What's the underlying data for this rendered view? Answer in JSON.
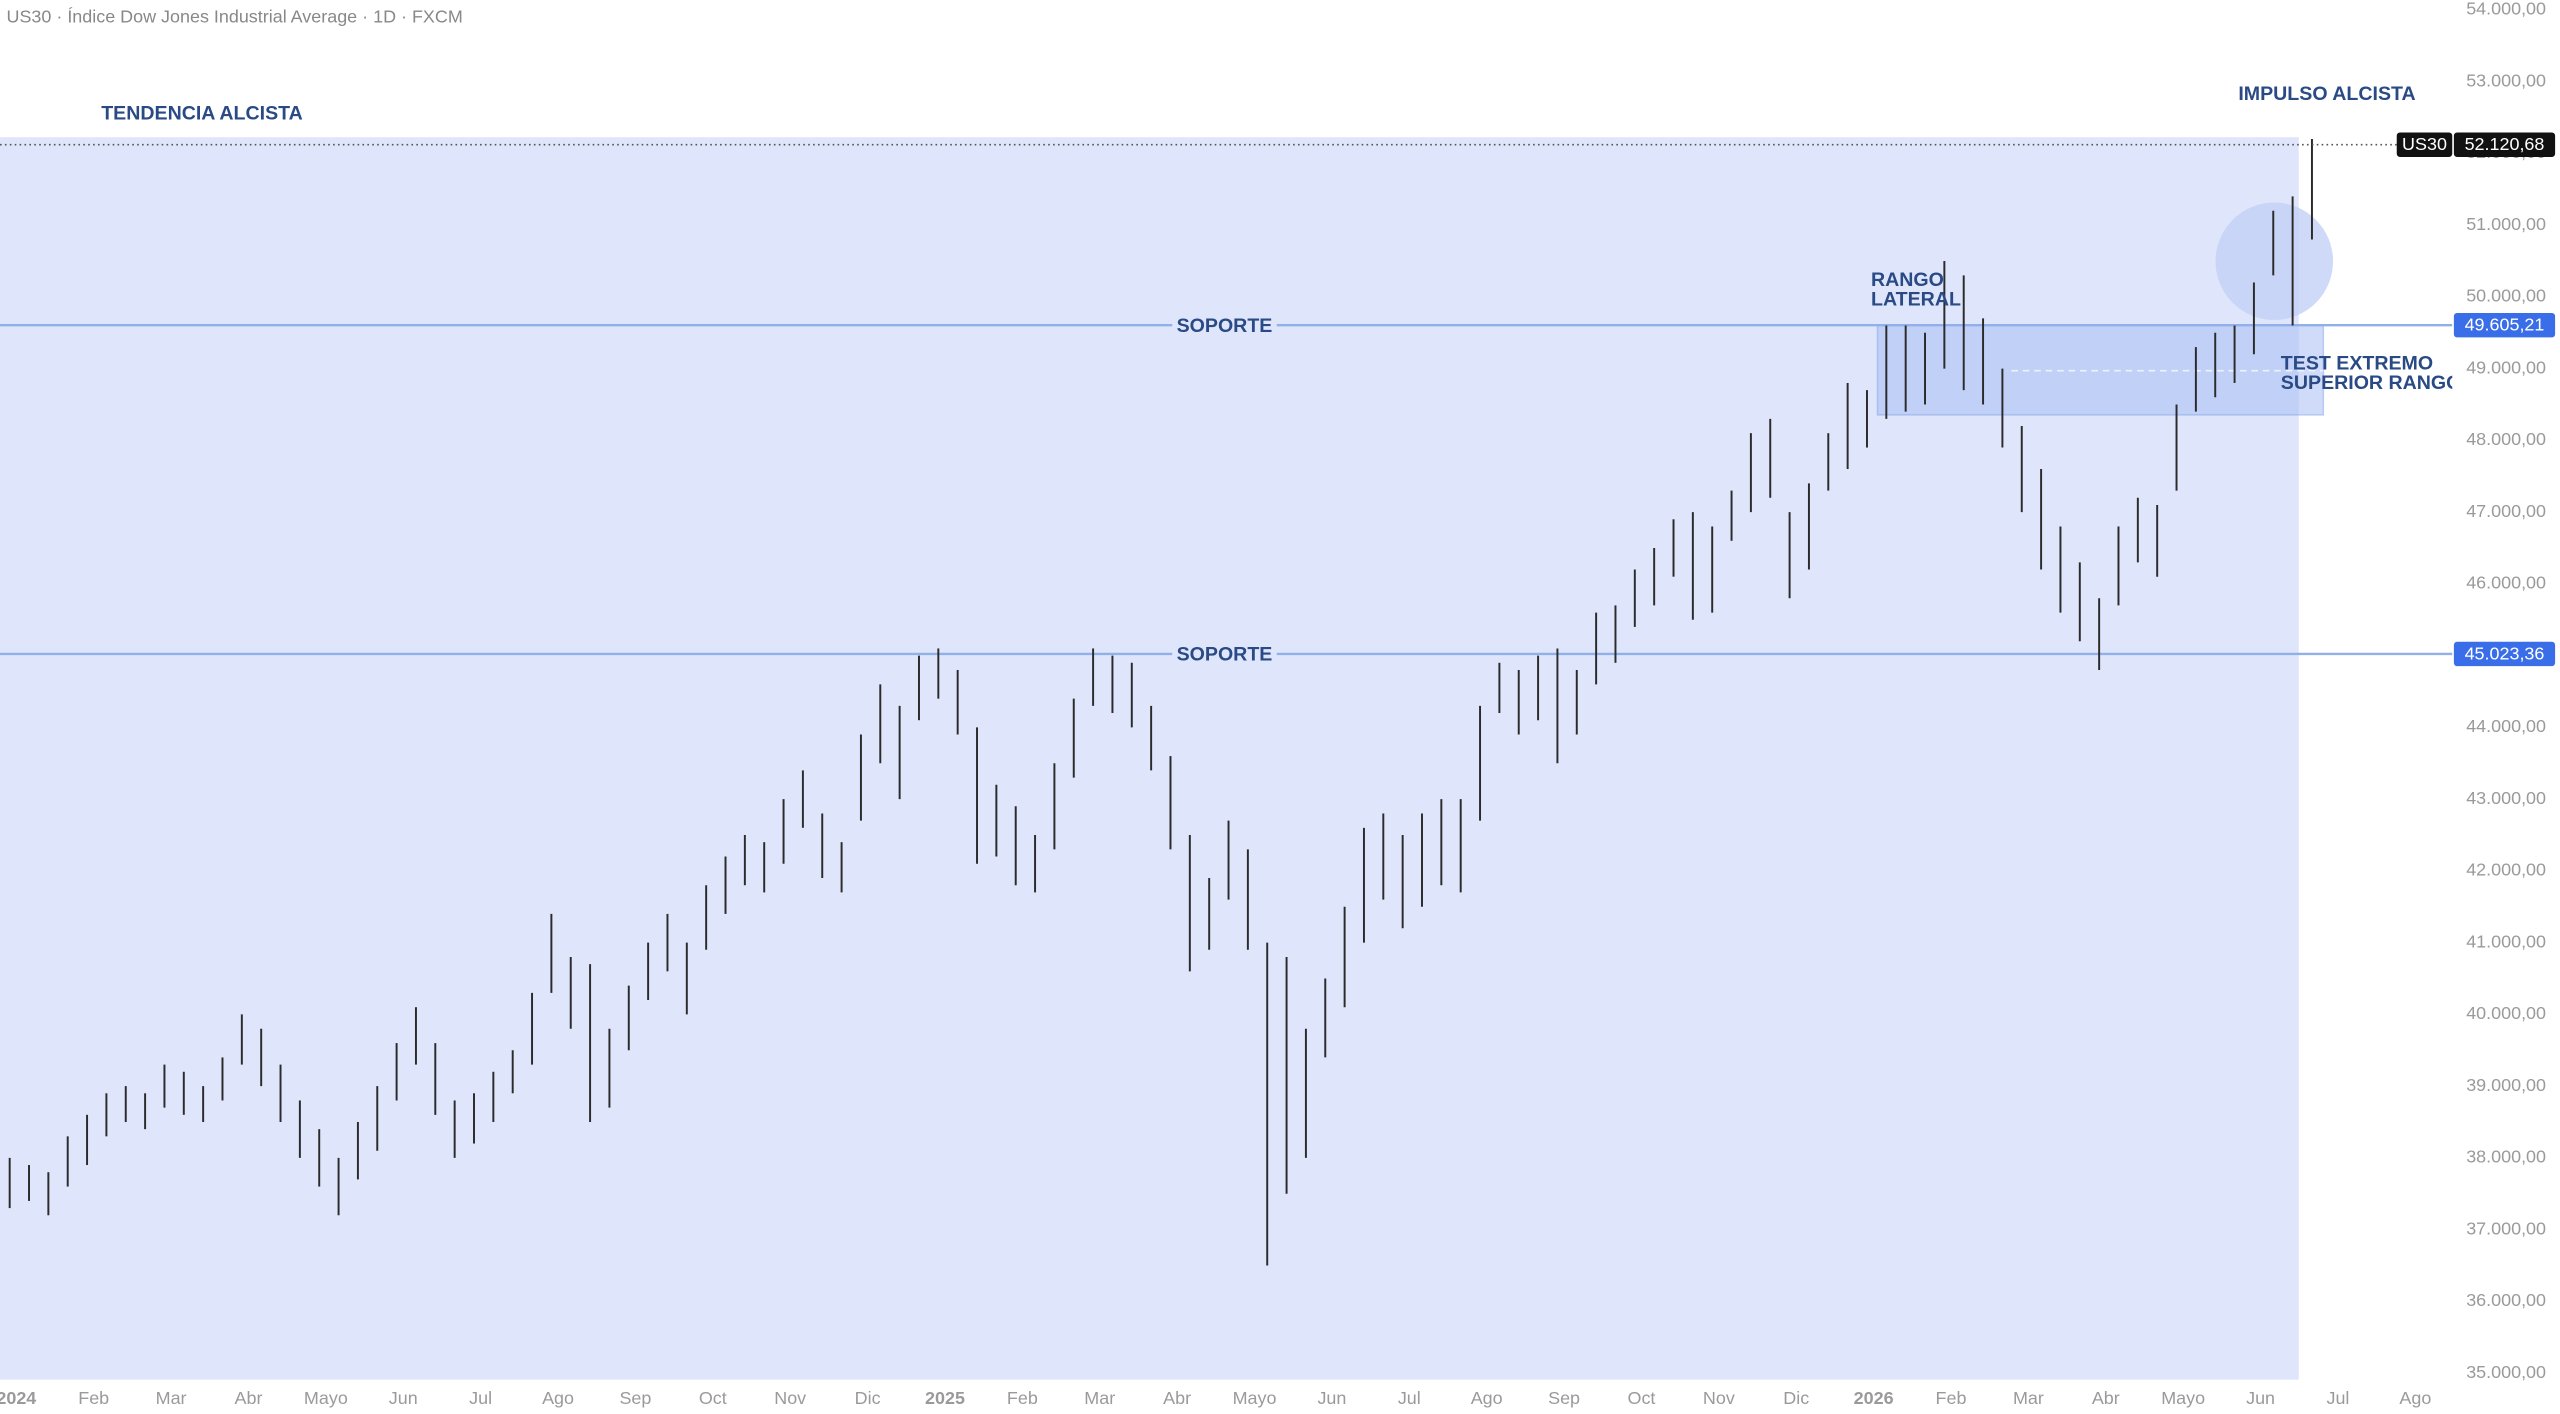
{
  "chart_data": {
    "type": "ohlc",
    "title": "US30 · Índice Dow Jones Industrial Average · 1D · FXCM",
    "categories": [
      "2024",
      "Feb",
      "Mar",
      "Abr",
      "Mayo",
      "Jun",
      "Jul",
      "Ago",
      "Sep",
      "Oct",
      "Nov",
      "Dic",
      "2025",
      "Feb",
      "Mar",
      "Abr",
      "Mayo",
      "Jun",
      "Jul",
      "Ago",
      "Sep",
      "Oct",
      "Nov",
      "Dic",
      "2026",
      "Feb",
      "Mar",
      "Abr",
      "Mayo",
      "Jun",
      "Jul",
      "Ago"
    ],
    "bars": [
      [
        [
          38000,
          37300
        ],
        [
          37900,
          37400
        ],
        [
          37800,
          37200
        ],
        [
          38300,
          37600
        ]
      ],
      [
        [
          38600,
          37900
        ],
        [
          38900,
          38300
        ],
        [
          39000,
          38500
        ],
        [
          38900,
          38400
        ]
      ],
      [
        [
          39300,
          38700
        ],
        [
          39200,
          38600
        ],
        [
          39000,
          38500
        ],
        [
          39400,
          38800
        ]
      ],
      [
        [
          40000,
          39300
        ],
        [
          39800,
          39000
        ],
        [
          39300,
          38500
        ],
        [
          38800,
          38000
        ]
      ],
      [
        [
          38400,
          37600
        ],
        [
          38000,
          37200
        ],
        [
          38500,
          37700
        ],
        [
          39000,
          38100
        ]
      ],
      [
        [
          39600,
          38800
        ],
        [
          40100,
          39300
        ],
        [
          39600,
          38600
        ],
        [
          38800,
          38000
        ]
      ],
      [
        [
          38900,
          38200
        ],
        [
          39200,
          38500
        ],
        [
          39500,
          38900
        ],
        [
          40300,
          39300
        ]
      ],
      [
        [
          41400,
          40300
        ],
        [
          40800,
          39800
        ],
        [
          40700,
          38500
        ],
        [
          39800,
          38700
        ]
      ],
      [
        [
          40400,
          39500
        ],
        [
          41000,
          40200
        ],
        [
          41400,
          40600
        ],
        [
          41000,
          40000
        ]
      ],
      [
        [
          41800,
          40900
        ],
        [
          42200,
          41400
        ],
        [
          42500,
          41800
        ],
        [
          42400,
          41700
        ]
      ],
      [
        [
          43000,
          42100
        ],
        [
          43400,
          42600
        ],
        [
          42800,
          41900
        ],
        [
          42400,
          41700
        ]
      ],
      [
        [
          43900,
          42700
        ],
        [
          44600,
          43500
        ],
        [
          44300,
          43000
        ],
        [
          45000,
          44100
        ]
      ],
      [
        [
          45100,
          44400
        ],
        [
          44800,
          43900
        ],
        [
          44000,
          42100
        ],
        [
          43200,
          42200
        ]
      ],
      [
        [
          42900,
          41800
        ],
        [
          42500,
          41700
        ],
        [
          43500,
          42300
        ],
        [
          44400,
          43300
        ]
      ],
      [
        [
          45100,
          44300
        ],
        [
          45000,
          44200
        ],
        [
          44900,
          44000
        ],
        [
          44300,
          43400
        ]
      ],
      [
        [
          43600,
          42300
        ],
        [
          42500,
          40600
        ],
        [
          41900,
          40900
        ],
        [
          42700,
          41600
        ]
      ],
      [
        [
          42300,
          40900
        ],
        [
          41000,
          36500
        ],
        [
          40800,
          37500
        ],
        [
          39800,
          38000
        ]
      ],
      [
        [
          40500,
          39400
        ],
        [
          41500,
          40100
        ],
        [
          42600,
          41000
        ],
        [
          42800,
          41600
        ]
      ],
      [
        [
          42500,
          41200
        ],
        [
          42800,
          41500
        ],
        [
          43000,
          41800
        ],
        [
          43000,
          41700
        ]
      ],
      [
        [
          44300,
          42700
        ],
        [
          44900,
          44200
        ],
        [
          44800,
          43900
        ],
        [
          45000,
          44100
        ]
      ],
      [
        [
          45100,
          43500
        ],
        [
          44800,
          43900
        ],
        [
          45600,
          44600
        ],
        [
          45700,
          44900
        ]
      ],
      [
        [
          46200,
          45400
        ],
        [
          46500,
          45700
        ],
        [
          46900,
          46100
        ],
        [
          47000,
          45500
        ]
      ],
      [
        [
          46800,
          45600
        ],
        [
          47300,
          46600
        ],
        [
          48100,
          47000
        ],
        [
          48300,
          47200
        ]
      ],
      [
        [
          47000,
          45800
        ],
        [
          47400,
          46200
        ],
        [
          48100,
          47300
        ],
        [
          48800,
          47600
        ]
      ],
      [
        [
          48700,
          47900
        ],
        [
          49600,
          48300
        ],
        [
          49600,
          48400
        ],
        [
          49500,
          48500
        ]
      ],
      [
        [
          50500,
          49000
        ],
        [
          50300,
          48700
        ],
        [
          49700,
          48500
        ],
        [
          49000,
          47900
        ]
      ],
      [
        [
          48200,
          47000
        ],
        [
          47600,
          46200
        ],
        [
          46800,
          45600
        ],
        [
          46300,
          45200
        ]
      ],
      [
        [
          45800,
          44800
        ],
        [
          46800,
          45700
        ],
        [
          47200,
          46300
        ],
        [
          47100,
          46100
        ]
      ],
      [
        [
          48500,
          47300
        ],
        [
          49300,
          48400
        ],
        [
          49500,
          48600
        ],
        [
          49600,
          48800
        ]
      ],
      [
        [
          50200,
          49200
        ],
        [
          51200,
          50300
        ],
        [
          51400,
          49600
        ],
        [
          52200,
          50800
        ]
      ],
      [],
      []
    ],
    "ylim": [
      35000,
      54000
    ],
    "yticks": [
      {
        "value": 35000,
        "label": "35.000,00"
      },
      {
        "value": 36000,
        "label": "36.000,00"
      },
      {
        "value": 37000,
        "label": "37.000,00"
      },
      {
        "value": 38000,
        "label": "38.000,00"
      },
      {
        "value": 39000,
        "label": "39.000,00"
      },
      {
        "value": 40000,
        "label": "40.000,00"
      },
      {
        "value": 41000,
        "label": "41.000,00"
      },
      {
        "value": 42000,
        "label": "42.000,00"
      },
      {
        "value": 43000,
        "label": "43.000,00"
      },
      {
        "value": 44000,
        "label": "44.000,00"
      },
      {
        "value": 45000,
        "label": "45.000,00"
      },
      {
        "value": 46000,
        "label": "46.000,00"
      },
      {
        "value": 47000,
        "label": "47.000,00"
      },
      {
        "value": 48000,
        "label": "48.000,00"
      },
      {
        "value": 49000,
        "label": "49.000,00"
      },
      {
        "value": 50000,
        "label": "50.000,00"
      },
      {
        "value": 51000,
        "label": "51.000,00"
      },
      {
        "value": 52000,
        "label": "52.000,00"
      },
      {
        "value": 53000,
        "label": "53.000,00"
      },
      {
        "value": 54000,
        "label": "54.000,00"
      }
    ],
    "levels": [
      {
        "value": 49605.21,
        "label": "49.605,21",
        "name": "SOPORTE"
      },
      {
        "value": 45023.36,
        "label": "45.023,36",
        "name": "SOPORTE"
      }
    ],
    "last_price": {
      "symbol": "US30",
      "value": 52120.68,
      "label": "52.120,68"
    },
    "annotations": {
      "trend": "TENDENCIA ALCISTA",
      "impulse": "IMPULSO ALCISTA",
      "range": [
        "RANGO",
        "LATERAL"
      ],
      "test": [
        "TEST EXTREMO",
        "SUPERIOR RANGO"
      ]
    },
    "bar_color": "#2b2b2b",
    "level_color": "#8fb0e8",
    "level_label_color": "#3a6ee8"
  }
}
